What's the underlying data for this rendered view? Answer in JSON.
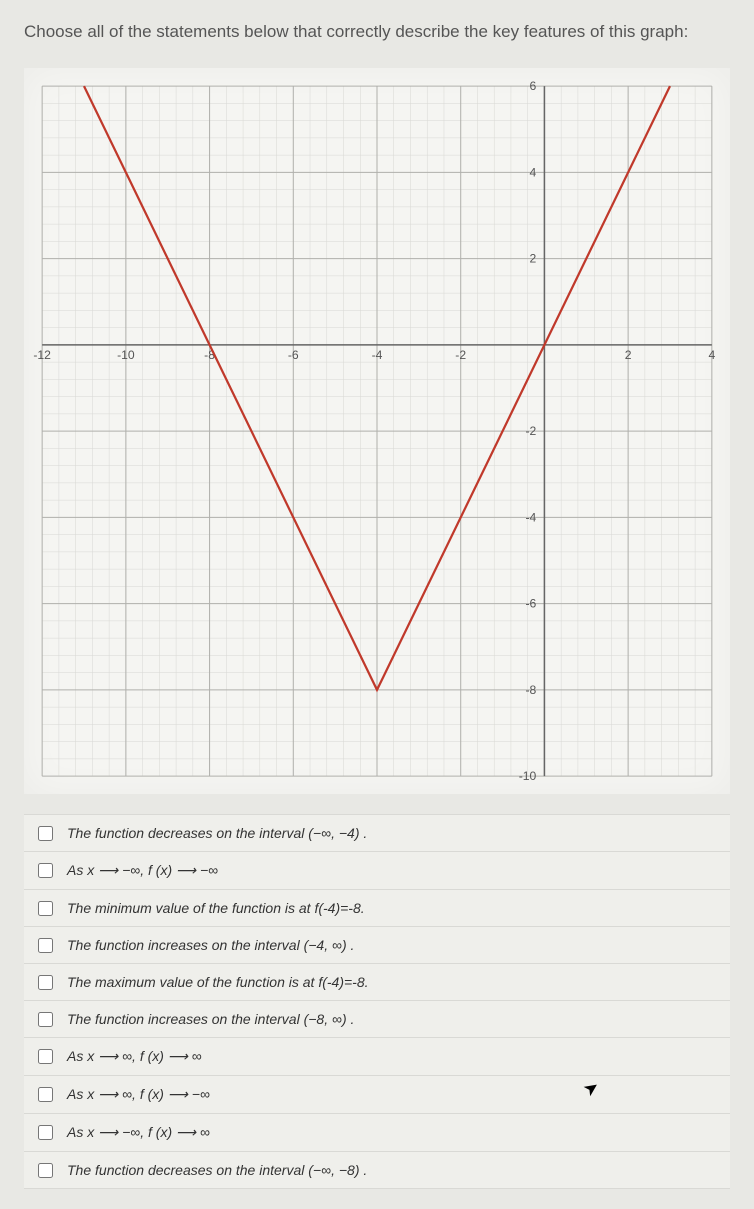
{
  "question": "Choose all of the statements below that correctly describe the key features of this graph:",
  "chart": {
    "type": "line",
    "xlim": [
      -12,
      4
    ],
    "ylim": [
      -10,
      6
    ],
    "xtick_step": 2,
    "ytick_step": 2,
    "minor_per_major": 5,
    "grid_major_color": "#b0b0ac",
    "grid_minor_color": "#d8d8d4",
    "axis_color": "#666666",
    "background_color": "#f5f5f2",
    "curve_color": "#c0392b",
    "curve_width": 2.2,
    "tick_fontsize": 12,
    "tick_color": "#555555",
    "vertex": [
      -4,
      -8
    ],
    "slope": 2,
    "x_tick_labels": [
      "-12",
      "-10",
      "-8",
      "-6",
      "-4",
      "-2",
      "",
      "2",
      "4"
    ],
    "y_tick_labels_pos": [
      "2",
      "4",
      "6"
    ],
    "y_tick_labels_neg": [
      "-2",
      "-4",
      "-6",
      "-8",
      "-10"
    ]
  },
  "options": [
    {
      "label": "The function decreases on the interval (−∞, −4) .",
      "checked": false
    },
    {
      "label": "As x ⟶ −∞,  f (x) ⟶ −∞",
      "checked": false
    },
    {
      "label": "The minimum value of the function is at f(-4)=-8.",
      "checked": false
    },
    {
      "label": "The function increases on the interval (−4, ∞) .",
      "checked": false
    },
    {
      "label": "The maximum value of the function is at f(-4)=-8.",
      "checked": false
    },
    {
      "label": "The function increases on the interval (−8, ∞) .",
      "checked": false
    },
    {
      "label": "As x ⟶ ∞,  f (x) ⟶ ∞",
      "checked": false
    },
    {
      "label": "As x ⟶ ∞,  f (x) ⟶ −∞",
      "checked": false
    },
    {
      "label": "As x ⟶ −∞,  f (x) ⟶ ∞",
      "checked": false
    },
    {
      "label": "The function decreases on the interval (−∞, −8) .",
      "checked": false
    }
  ],
  "cursor": {
    "visible": true,
    "glyph": "➤"
  }
}
